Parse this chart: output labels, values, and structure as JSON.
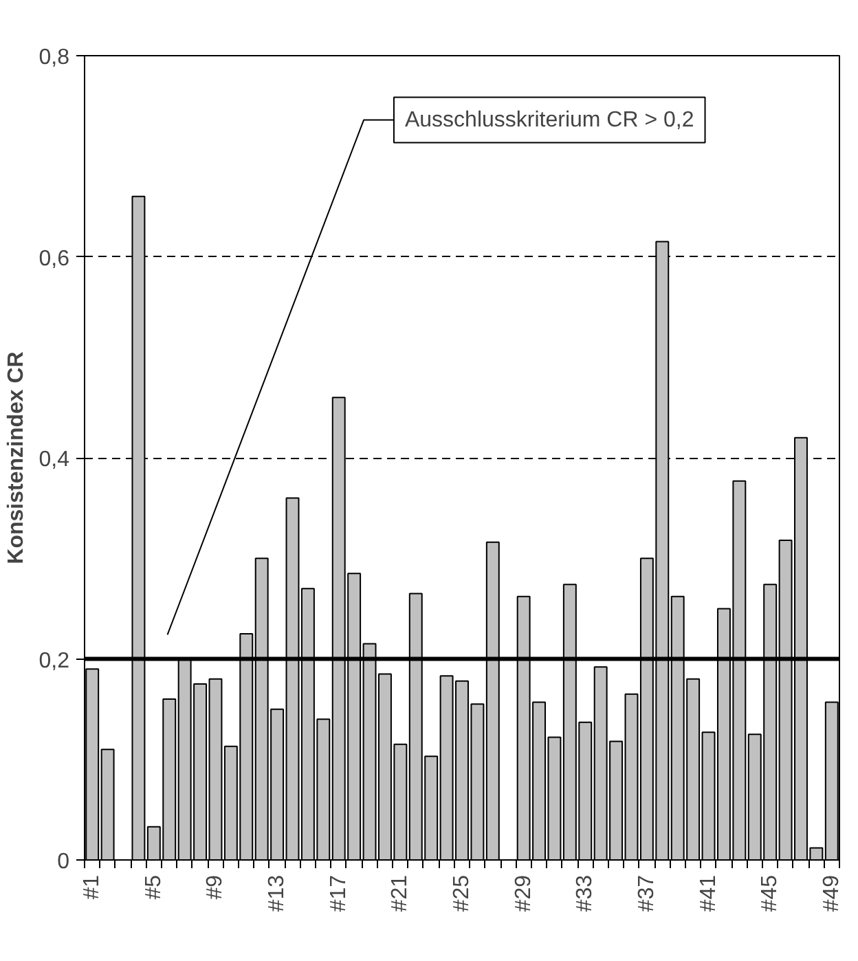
{
  "chart_data": {
    "type": "bar",
    "ylabel": "Konsistenzindex CR",
    "categories": [
      "#1",
      null,
      null,
      null,
      "#5",
      null,
      null,
      null,
      "#9",
      null,
      null,
      null,
      "#13",
      null,
      null,
      null,
      "#17",
      null,
      null,
      null,
      "#21",
      null,
      null,
      null,
      "#25",
      null,
      null,
      null,
      "#29",
      null,
      null,
      null,
      "#33",
      null,
      null,
      null,
      "#37",
      null,
      null,
      null,
      "#41",
      null,
      null,
      null,
      "#45",
      null,
      null,
      null,
      "#49"
    ],
    "values": [
      0.19,
      0.11,
      null,
      0.66,
      0.033,
      0.16,
      0.2,
      0.175,
      0.18,
      0.113,
      0.225,
      0.3,
      0.15,
      0.36,
      0.27,
      0.14,
      0.46,
      0.285,
      0.215,
      0.185,
      0.115,
      0.265,
      0.103,
      0.183,
      0.178,
      0.155,
      0.316,
      null,
      0.262,
      0.157,
      0.122,
      0.274,
      0.137,
      0.192,
      0.118,
      0.165,
      0.3,
      0.615,
      0.262,
      0.18,
      0.127,
      0.25,
      0.377,
      0.125,
      0.274,
      0.318,
      0.42,
      0.012,
      0.157
    ],
    "color": "#c0c0c0",
    "ylim": [
      0,
      0.8
    ],
    "yticks": [
      {
        "value": 0,
        "label": "0"
      },
      {
        "value": 0.2,
        "label": "0,2"
      },
      {
        "value": 0.4,
        "label": "0,4"
      },
      {
        "value": 0.6,
        "label": "0,6"
      },
      {
        "value": 0.8,
        "label": "0,8"
      }
    ],
    "grid": "y",
    "annotations": [
      "Ausschlusskriterium CR > 0,2"
    ],
    "ref_lines": [
      {
        "axis": "y",
        "value": 0.2,
        "color": "#000000",
        "line_style": "solid"
      }
    ]
  }
}
